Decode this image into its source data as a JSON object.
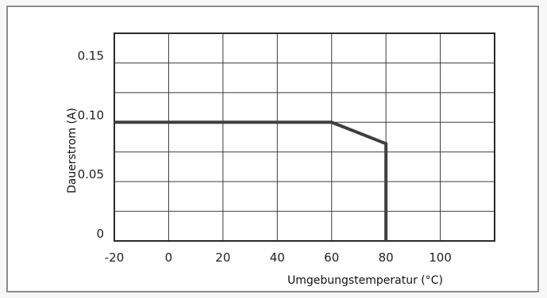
{
  "chart_data": {
    "type": "line",
    "title": "",
    "xlabel": "Umgebungstemperatur (°C)",
    "ylabel": "Dauerstrom (A)",
    "xlim": [
      -20,
      120
    ],
    "ylim": [
      0,
      0.175
    ],
    "x_ticks": [
      -20,
      0,
      20,
      40,
      60,
      80,
      100
    ],
    "x_tick_labels": [
      "-20",
      "0",
      "20",
      "40",
      "60",
      "80",
      "100"
    ],
    "y_ticks": [
      0,
      0.05,
      0.1,
      0.15
    ],
    "y_tick_labels": [
      "0",
      "0.05",
      "0.10",
      "0.15"
    ],
    "grid": true,
    "legend": "none",
    "series": [
      {
        "x": [
          -20,
          60,
          80,
          80
        ],
        "y": [
          0.1,
          0.1,
          0.082,
          0
        ],
        "color": "#3f3f3f"
      }
    ]
  }
}
